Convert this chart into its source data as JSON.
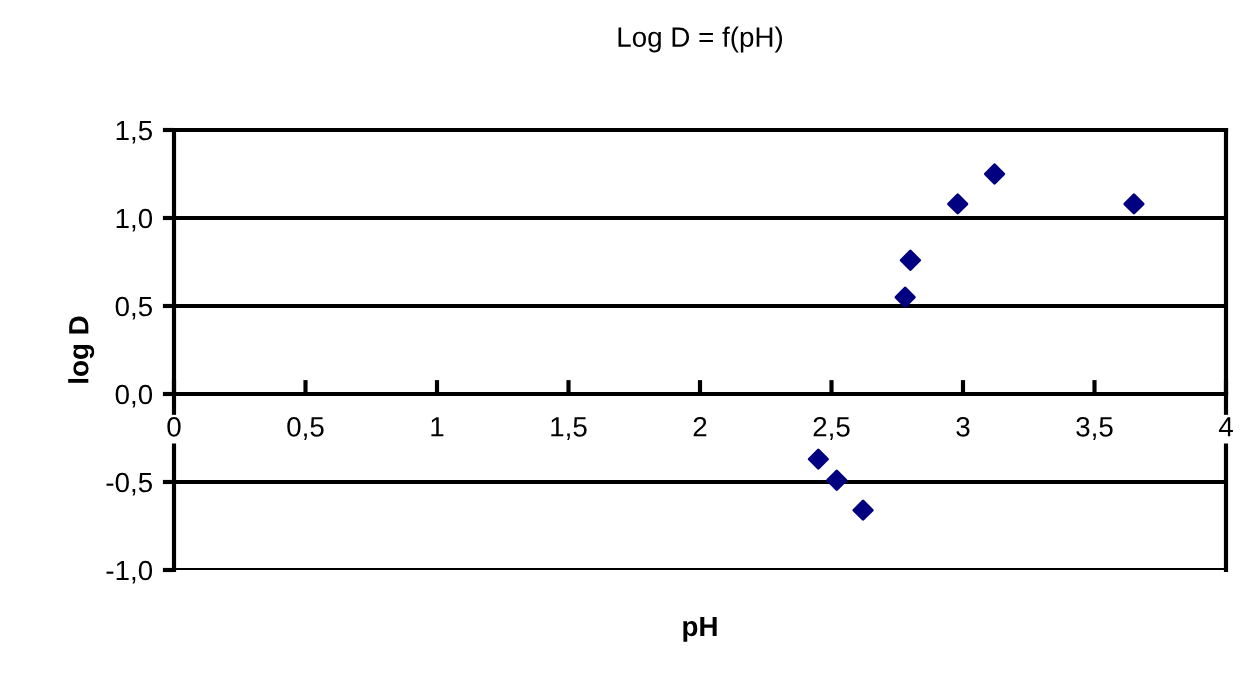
{
  "chart_data": {
    "type": "scatter",
    "title": "Log D = f(pH)",
    "xlabel": "pH",
    "ylabel": "log D",
    "series": [
      {
        "color": "#000080",
        "x": [
          2.45,
          2.52,
          2.62,
          2.78,
          2.8,
          2.98,
          3.12,
          3.65
        ],
        "values": [
          -0.37,
          -0.49,
          -0.66,
          0.55,
          0.76,
          1.08,
          1.25,
          1.08
        ]
      }
    ],
    "xlim": [
      0,
      4
    ],
    "xticks": [
      0,
      {
        "value": 0.5,
        "label": "0,5"
      },
      1,
      {
        "value": 1.5,
        "label": "1,5"
      },
      2,
      {
        "value": 2.5,
        "label": "2,5"
      },
      3,
      {
        "value": 3.5,
        "label": "3,5"
      },
      4
    ],
    "ylim": [
      -1,
      1.5
    ],
    "yticks": [
      {
        "value": -1,
        "label": "-1,0"
      },
      {
        "value": -0.5,
        "label": "-0,5"
      },
      {
        "value": 0,
        "label": "0,0"
      },
      {
        "value": 0.5,
        "label": "0,5"
      },
      {
        "value": 1,
        "label": "1,0"
      },
      {
        "value": 1.5,
        "label": "1,5"
      }
    ],
    "grid": "y",
    "marker": "diamond",
    "legend": false
  }
}
